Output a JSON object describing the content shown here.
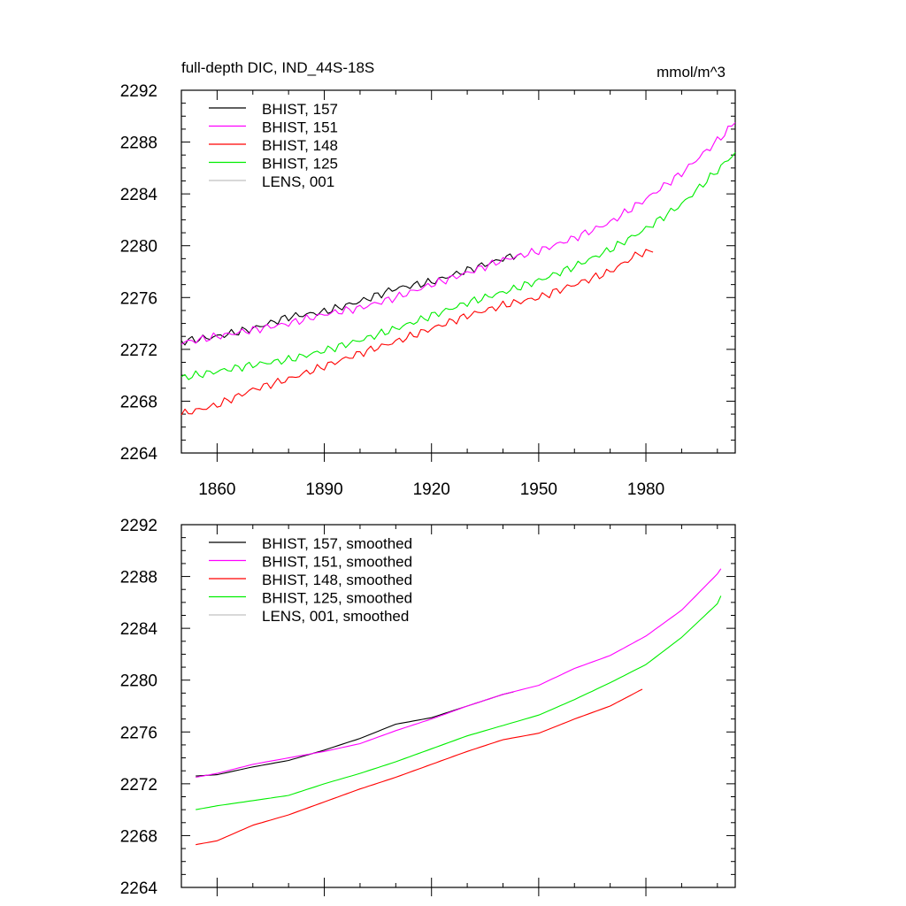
{
  "chart_data": [
    {
      "type": "line",
      "title": "full-depth DIC, IND_44S-18S",
      "units": "mmol/m^3",
      "xlim": [
        1850,
        2005
      ],
      "ylim": [
        2264,
        2292
      ],
      "xticks": [
        1860,
        1890,
        1920,
        1950,
        1980
      ],
      "yticks": [
        2264,
        2268,
        2272,
        2276,
        2280,
        2284,
        2288,
        2292
      ],
      "show_xtick_labels": true,
      "legend_position": "top-left",
      "series": [
        {
          "name": "BHIST, 157",
          "color": "#000000",
          "x": [
            1850,
            1860,
            1870,
            1880,
            1890,
            1900,
            1910,
            1920,
            1930,
            1940,
            1945
          ],
          "y": [
            2272.6,
            2273.0,
            2273.6,
            2274.5,
            2274.9,
            2275.7,
            2276.7,
            2277.2,
            2278.1,
            2279.0,
            2279.4
          ]
        },
        {
          "name": "BHIST, 151",
          "color": "#ff00ff",
          "x": [
            1850,
            1860,
            1870,
            1880,
            1890,
            1900,
            1910,
            1920,
            1930,
            1940,
            1950,
            1960,
            1970,
            1980,
            1990,
            2000,
            2005
          ],
          "y": [
            2272.5,
            2273.0,
            2273.5,
            2274.0,
            2274.7,
            2275.2,
            2276.0,
            2277.0,
            2277.9,
            2278.9,
            2279.6,
            2280.6,
            2281.8,
            2283.6,
            2285.6,
            2288.1,
            2289.5
          ]
        },
        {
          "name": "BHIST, 148",
          "color": "#ff0000",
          "x": [
            1850,
            1860,
            1870,
            1880,
            1890,
            1900,
            1910,
            1920,
            1930,
            1940,
            1950,
            1960,
            1970,
            1978,
            1982
          ],
          "y": [
            2267.0,
            2267.7,
            2268.9,
            2269.7,
            2270.7,
            2271.7,
            2272.6,
            2273.6,
            2274.6,
            2275.4,
            2276.0,
            2277.0,
            2278.0,
            2279.4,
            2279.5
          ]
        },
        {
          "name": "BHIST, 125",
          "color": "#00ee00",
          "x": [
            1850,
            1860,
            1870,
            1880,
            1890,
            1900,
            1910,
            1920,
            1930,
            1940,
            1950,
            1960,
            1970,
            1980,
            1990,
            2000,
            2005
          ],
          "y": [
            2269.8,
            2270.3,
            2270.8,
            2271.2,
            2271.9,
            2272.7,
            2273.6,
            2274.6,
            2275.6,
            2276.4,
            2277.3,
            2278.4,
            2279.7,
            2281.3,
            2283.2,
            2285.8,
            2287.2
          ]
        },
        {
          "name": "LENS, 001",
          "color": "#c0c0c0",
          "x": [],
          "y": []
        }
      ]
    },
    {
      "type": "line",
      "title": "",
      "xlim": [
        1850,
        2005
      ],
      "ylim": [
        2264,
        2292
      ],
      "xticks": [
        1860,
        1890,
        1920,
        1950,
        1980
      ],
      "yticks": [
        2264,
        2268,
        2272,
        2276,
        2280,
        2284,
        2288,
        2292
      ],
      "show_xtick_labels": false,
      "legend_position": "top-left",
      "series": [
        {
          "name": "BHIST, 157, smoothed",
          "color": "#000000",
          "x": [
            1854,
            1860,
            1870,
            1880,
            1890,
            1900,
            1910,
            1920,
            1930,
            1940,
            1943
          ],
          "y": [
            2272.6,
            2272.7,
            2273.3,
            2273.8,
            2274.6,
            2275.5,
            2276.6,
            2277.1,
            2278.0,
            2278.9,
            2279.1
          ]
        },
        {
          "name": "BHIST, 151, smoothed",
          "color": "#ff00ff",
          "x": [
            1854,
            1860,
            1870,
            1880,
            1890,
            1900,
            1910,
            1920,
            1930,
            1940,
            1950,
            1960,
            1970,
            1980,
            1990,
            2000,
            2001
          ],
          "y": [
            2272.5,
            2272.8,
            2273.5,
            2274.0,
            2274.5,
            2275.1,
            2276.1,
            2277.0,
            2278.0,
            2278.9,
            2279.6,
            2280.9,
            2281.9,
            2283.4,
            2285.4,
            2288.2,
            2288.6
          ]
        },
        {
          "name": "BHIST, 148, smoothed",
          "color": "#ff0000",
          "x": [
            1854,
            1860,
            1870,
            1880,
            1890,
            1900,
            1910,
            1920,
            1930,
            1940,
            1950,
            1960,
            1970,
            1979
          ],
          "y": [
            2267.3,
            2267.6,
            2268.8,
            2269.6,
            2270.6,
            2271.6,
            2272.5,
            2273.5,
            2274.5,
            2275.4,
            2275.9,
            2277.0,
            2278.0,
            2279.3
          ]
        },
        {
          "name": "BHIST, 125, smoothed",
          "color": "#00ee00",
          "x": [
            1854,
            1860,
            1870,
            1880,
            1890,
            1900,
            1910,
            1920,
            1930,
            1940,
            1950,
            1960,
            1970,
            1980,
            1990,
            2000,
            2001
          ],
          "y": [
            2270.0,
            2270.3,
            2270.7,
            2271.1,
            2272.0,
            2272.8,
            2273.7,
            2274.7,
            2275.7,
            2276.5,
            2277.3,
            2278.5,
            2279.8,
            2281.2,
            2283.3,
            2285.9,
            2286.5
          ]
        },
        {
          "name": "LENS, 001, smoothed",
          "color": "#c0c0c0",
          "x": [],
          "y": []
        }
      ]
    }
  ]
}
